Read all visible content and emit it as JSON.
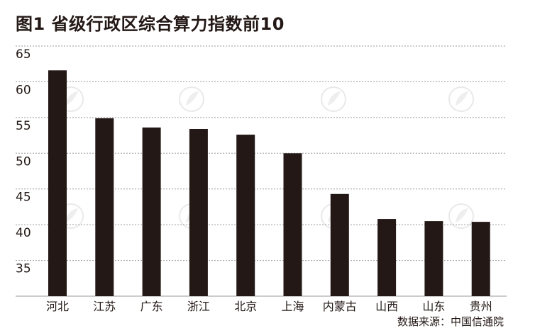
{
  "title": "图1 省级行政区综合算力指数前10",
  "source": "数据来源：中国信通院",
  "chart_data": {
    "type": "bar",
    "categories": [
      "河北",
      "江苏",
      "广东",
      "浙江",
      "北京",
      "上海",
      "内蒙古",
      "山西",
      "山东",
      "贵州"
    ],
    "values": [
      61.6,
      54.9,
      53.6,
      53.4,
      52.6,
      50.0,
      44.3,
      40.8,
      40.5,
      40.4
    ],
    "yticks": [
      35,
      40,
      45,
      50,
      55,
      60,
      65
    ],
    "ylim": [
      30,
      65
    ],
    "grid": true,
    "bar_color": "#231815",
    "grid_color": "#9a9a9a"
  }
}
